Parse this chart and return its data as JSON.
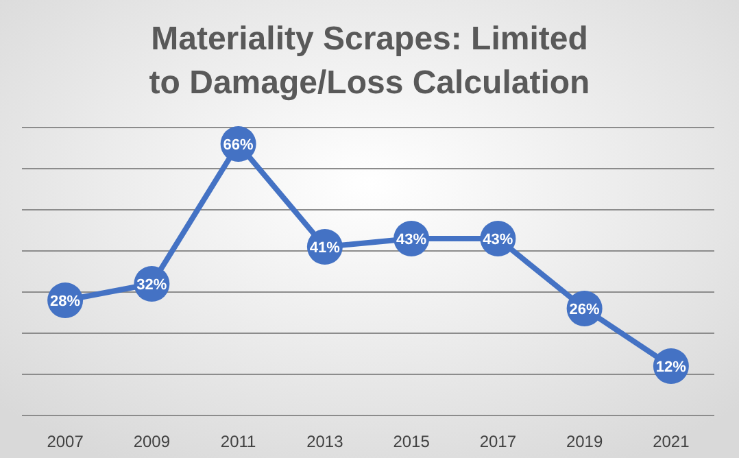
{
  "chart_data": {
    "type": "line",
    "title": "Materiality Scrapes: Limited to Damage/Loss Calculation",
    "categories": [
      "2007",
      "2009",
      "2011",
      "2013",
      "2015",
      "2017",
      "2019",
      "2021"
    ],
    "color": "#4472c4",
    "values": [
      28,
      32,
      66,
      41,
      43,
      43,
      26,
      12
    ],
    "value_labels": [
      "28%",
      "32%",
      "66%",
      "41%",
      "43%",
      "43%",
      "26%",
      "12%"
    ],
    "tick_labels": "x",
    "grid": "y",
    "marker": "circle",
    "line_style": "solid"
  }
}
